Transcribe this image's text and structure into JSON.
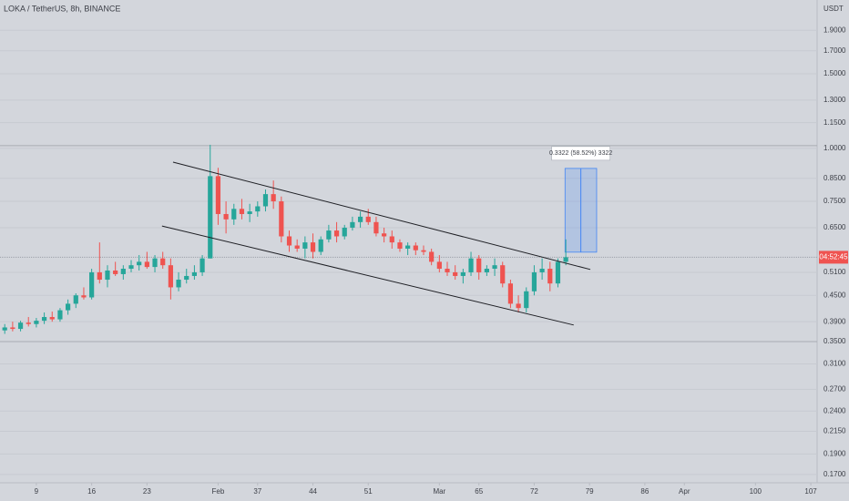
{
  "chart_data": {
    "type": "candlestick",
    "title": "LOKA / TetherUS, 8h, BINANCE",
    "y_unit": "USDT",
    "log_scale": true,
    "grid": true,
    "up_color": "#26a69a",
    "down_color": "#ef5350",
    "xlim": [
      4.4,
      107.8
    ],
    "xticks": [
      9,
      16,
      23,
      {
        "value": 32,
        "label": "Feb"
      },
      37,
      44,
      51,
      {
        "value": 60,
        "label": "Mar"
      },
      65,
      72,
      79,
      86,
      {
        "value": 91,
        "label": "Apr"
      },
      100,
      107
    ],
    "ylim": [
      0.1625,
      2.24
    ],
    "yticks": [
      {
        "value": 1.9,
        "label": "1.9000"
      },
      {
        "value": 1.7,
        "label": "1.7000"
      },
      {
        "value": 1.5,
        "label": "1.5000"
      },
      {
        "value": 1.3,
        "label": "1.3000"
      },
      {
        "value": 1.15,
        "label": "1.1500"
      },
      {
        "value": 1.0,
        "label": "1.0000"
      },
      {
        "value": 0.85,
        "label": "0.8500"
      },
      {
        "value": 0.75,
        "label": "0.7500"
      },
      {
        "value": 0.65,
        "label": "0.6500"
      },
      {
        "value": 0.51,
        "label": "0.5100"
      },
      {
        "value": 0.45,
        "label": "0.4500"
      },
      {
        "value": 0.39,
        "label": "0.3900"
      },
      {
        "value": 0.35,
        "label": "0.3500"
      },
      {
        "value": 0.31,
        "label": "0.3100"
      },
      {
        "value": 0.27,
        "label": "0.2700"
      },
      {
        "value": 0.24,
        "label": "0.2400"
      },
      {
        "value": 0.215,
        "label": "0.2150"
      },
      {
        "value": 0.19,
        "label": "0.1900"
      },
      {
        "value": 0.17,
        "label": "0.1700"
      }
    ],
    "x": [
      5,
      6,
      7,
      8,
      9,
      10,
      11,
      12,
      13,
      14,
      15,
      16,
      17,
      18,
      19,
      20,
      21,
      22,
      23,
      24,
      25,
      26,
      27,
      28,
      29,
      30,
      31,
      32,
      33,
      34,
      35,
      36,
      37,
      38,
      39,
      40,
      41,
      42,
      43,
      44,
      45,
      46,
      47,
      48,
      49,
      50,
      51,
      52,
      53,
      54,
      55,
      56,
      57,
      58,
      59,
      60,
      61,
      62,
      63,
      64,
      65,
      66,
      67,
      68,
      69,
      70,
      71,
      72,
      73,
      74,
      75,
      76
    ],
    "open": [
      0.372,
      0.378,
      0.375,
      0.388,
      0.385,
      0.392,
      0.4,
      0.395,
      0.415,
      0.43,
      0.45,
      0.445,
      0.51,
      0.49,
      0.515,
      0.505,
      0.52,
      0.53,
      0.54,
      0.525,
      0.55,
      0.53,
      0.47,
      0.49,
      0.5,
      0.51,
      0.55,
      0.86,
      0.7,
      0.68,
      0.72,
      0.7,
      0.71,
      0.73,
      0.78,
      0.75,
      0.62,
      0.59,
      0.58,
      0.6,
      0.57,
      0.61,
      0.64,
      0.62,
      0.65,
      0.67,
      0.69,
      0.67,
      0.63,
      0.62,
      0.6,
      0.58,
      0.59,
      0.575,
      0.57,
      0.54,
      0.52,
      0.51,
      0.5,
      0.51,
      0.55,
      0.51,
      0.52,
      0.53,
      0.48,
      0.43,
      0.42,
      0.46,
      0.51,
      0.52,
      0.48,
      0.54
    ],
    "high": [
      0.385,
      0.39,
      0.392,
      0.4,
      0.398,
      0.41,
      0.412,
      0.42,
      0.44,
      0.455,
      0.47,
      0.52,
      0.6,
      0.53,
      0.54,
      0.53,
      0.545,
      0.56,
      0.57,
      0.56,
      0.57,
      0.55,
      0.51,
      0.52,
      0.53,
      0.56,
      1.02,
      0.9,
      0.75,
      0.74,
      0.76,
      0.74,
      0.75,
      0.8,
      0.84,
      0.77,
      0.64,
      0.61,
      0.62,
      0.63,
      0.62,
      0.66,
      0.67,
      0.66,
      0.69,
      0.71,
      0.72,
      0.69,
      0.65,
      0.64,
      0.61,
      0.6,
      0.6,
      0.59,
      0.58,
      0.56,
      0.54,
      0.53,
      0.52,
      0.57,
      0.56,
      0.53,
      0.55,
      0.54,
      0.49,
      0.45,
      0.47,
      0.53,
      0.55,
      0.54,
      0.55,
      0.61
    ],
    "low": [
      0.365,
      0.37,
      0.37,
      0.38,
      0.378,
      0.385,
      0.39,
      0.39,
      0.405,
      0.42,
      0.44,
      0.44,
      0.48,
      0.47,
      0.5,
      0.49,
      0.51,
      0.515,
      0.52,
      0.51,
      0.52,
      0.44,
      0.46,
      0.48,
      0.49,
      0.5,
      0.55,
      0.66,
      0.63,
      0.66,
      0.68,
      0.67,
      0.69,
      0.71,
      0.72,
      0.6,
      0.57,
      0.57,
      0.55,
      0.55,
      0.56,
      0.6,
      0.6,
      0.61,
      0.64,
      0.65,
      0.66,
      0.62,
      0.6,
      0.58,
      0.57,
      0.56,
      0.56,
      0.56,
      0.53,
      0.51,
      0.5,
      0.49,
      0.48,
      0.5,
      0.49,
      0.5,
      0.5,
      0.47,
      0.42,
      0.41,
      0.41,
      0.45,
      0.49,
      0.46,
      0.47,
      0.53
    ],
    "close": [
      0.378,
      0.375,
      0.388,
      0.385,
      0.392,
      0.4,
      0.395,
      0.415,
      0.43,
      0.45,
      0.445,
      0.51,
      0.49,
      0.515,
      0.505,
      0.52,
      0.53,
      0.54,
      0.525,
      0.55,
      0.53,
      0.47,
      0.49,
      0.5,
      0.51,
      0.55,
      0.86,
      0.7,
      0.68,
      0.72,
      0.7,
      0.71,
      0.73,
      0.78,
      0.75,
      0.62,
      0.59,
      0.58,
      0.6,
      0.57,
      0.61,
      0.64,
      0.62,
      0.65,
      0.67,
      0.69,
      0.67,
      0.63,
      0.62,
      0.6,
      0.58,
      0.59,
      0.575,
      0.57,
      0.54,
      0.52,
      0.51,
      0.5,
      0.51,
      0.55,
      0.51,
      0.52,
      0.53,
      0.48,
      0.43,
      0.42,
      0.46,
      0.51,
      0.52,
      0.48,
      0.54,
      0.5535
    ],
    "horizontal_lines": [
      1.015,
      0.35
    ],
    "last_price": 0.5535,
    "countdown": "04:52:45",
    "trendlines": [
      [
        26.3,
        0.928,
        79.1,
        0.518
      ],
      [
        24.9,
        0.656,
        77.0,
        0.383
      ]
    ],
    "measure": {
      "x": [
        75.9,
        79.9
      ],
      "y": [
        0.569,
        0.897
      ],
      "label": "0.3322 (58.52%) 3322"
    }
  }
}
